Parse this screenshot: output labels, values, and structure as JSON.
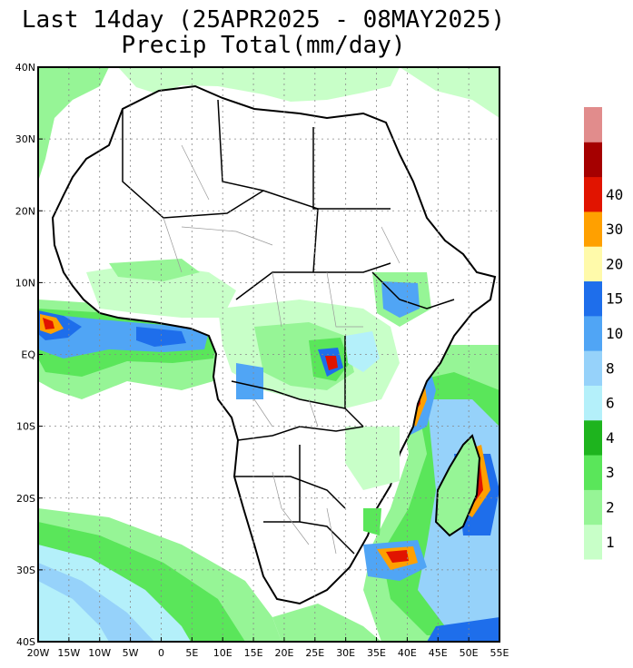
{
  "title_line1": "Last 14day (25APR2025 - 08MAY2025)",
  "title_line2": "Precip Total(mm/day)",
  "map": {
    "region": "Africa",
    "lon_range": [
      -20,
      55
    ],
    "lat_range": [
      -40,
      40
    ],
    "lat_ticks": [
      "40N",
      "30N",
      "20N",
      "10N",
      "EQ",
      "10S",
      "20S",
      "30S",
      "40S"
    ],
    "lon_ticks": [
      "20W",
      "15W",
      "10W",
      "5W",
      "0",
      "5E",
      "10E",
      "15E",
      "20E",
      "25E",
      "30E",
      "35E",
      "40E",
      "45E",
      "50E",
      "55E"
    ],
    "grid": "dotted",
    "land_color": "#ffffff",
    "border_color": "#000000"
  },
  "colorbar": {
    "labels": [
      "1",
      "2",
      "3",
      "4",
      "6",
      "8",
      "10",
      "15",
      "20",
      "30",
      "40"
    ],
    "colors": [
      "#c8ffc8",
      "#96f596",
      "#5ae65a",
      "#1eb41e",
      "#b4f0fa",
      "#96d2fa",
      "#50a5f5",
      "#1e6eeb",
      "#fffaaa",
      "#ffa000",
      "#e11400",
      "#a50000",
      "#e18c8c"
    ]
  }
}
